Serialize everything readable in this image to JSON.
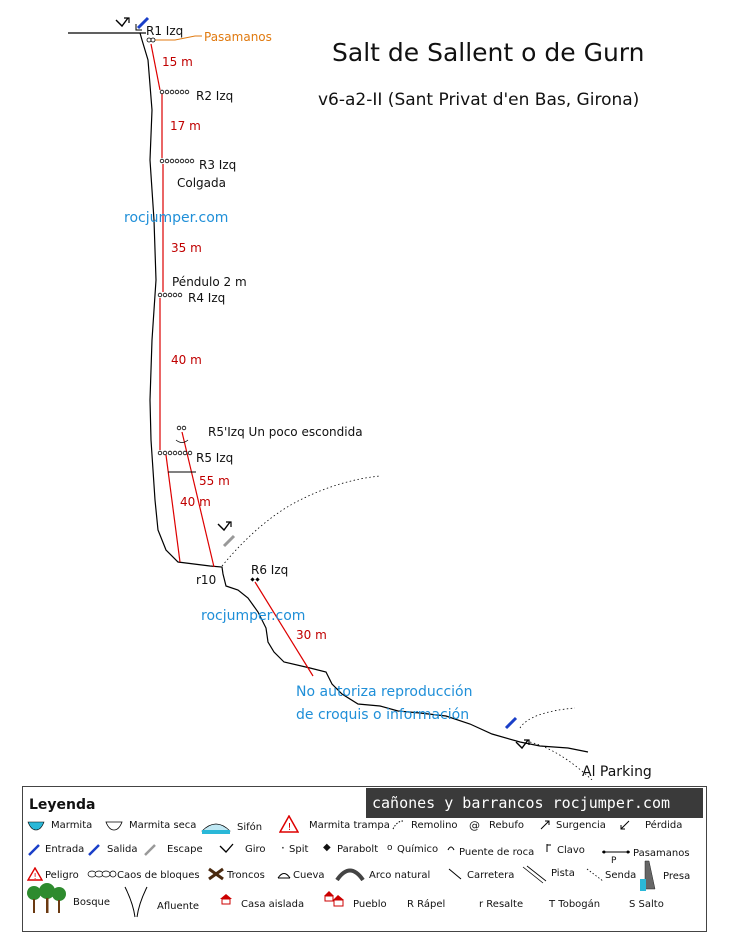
{
  "title": "Salt de Sallent  o de Gurn",
  "subtitle": "v6-a2-II  (Sant Privat d'en Bas, Girona)",
  "labels": {
    "r1": "R1 Izq",
    "pasamanos": "Pasamanos",
    "r2": "R2 Izq",
    "r3": "R3 Izq",
    "colgada": "Colgada",
    "pendulo": "Péndulo 2 m",
    "r4": "R4 Izq",
    "r5p": "R5'Izq  Un poco escondida",
    "r5": "R5 Izq",
    "r10": "r10",
    "r6": "R6 Izq",
    "parking": "Al Parking"
  },
  "distances": {
    "d1": "15 m",
    "d2": "17 m",
    "d3": "35 m",
    "d4": "40 m",
    "d5a": "55 m",
    "d5b": "40 m",
    "d6": "30 m"
  },
  "watermarks": {
    "w1": "rocjumper.com",
    "w2": "rocjumper.com",
    "notice1": "No autoriza reproducción",
    "notice2": "de croquis o información"
  },
  "legend": {
    "title": "Leyenda",
    "brand": "cañones y barrancos  rocjumper.com",
    "items": {
      "marmita": "Marmita",
      "marmita_seca": "Marmita seca",
      "sifon": "Sifón",
      "marmita_trampa": "Marmita trampa",
      "remolino": "Remolino",
      "rebufo": "Rebufo",
      "surgencia": "Surgencia",
      "perdida": "Pérdida",
      "entrada": "Entrada",
      "salida": "Salida",
      "escape": "Escape",
      "giro": "Giro",
      "spit": "Spit",
      "parabolt": "Parabolt",
      "quimico": "Químico",
      "puente_roca": "Puente de roca",
      "clavo": "Clavo",
      "pasamanos": "Pasamanos",
      "peligro": "Peligro",
      "caos": "Caos de bloques",
      "troncos": "Troncos",
      "cueva": "Cueva",
      "arco": "Arco natural",
      "carretera": "Carretera",
      "pista": "Pista",
      "senda": "Senda",
      "presa": "Presa",
      "bosque": "Bosque",
      "afluente": "Afluente",
      "casa": "Casa aislada",
      "pueblo": "Pueblo",
      "rapel": "R Rápel",
      "resalte": "r Resalte",
      "tobogan": "T Tobogán",
      "salto": "S Salto"
    }
  }
}
